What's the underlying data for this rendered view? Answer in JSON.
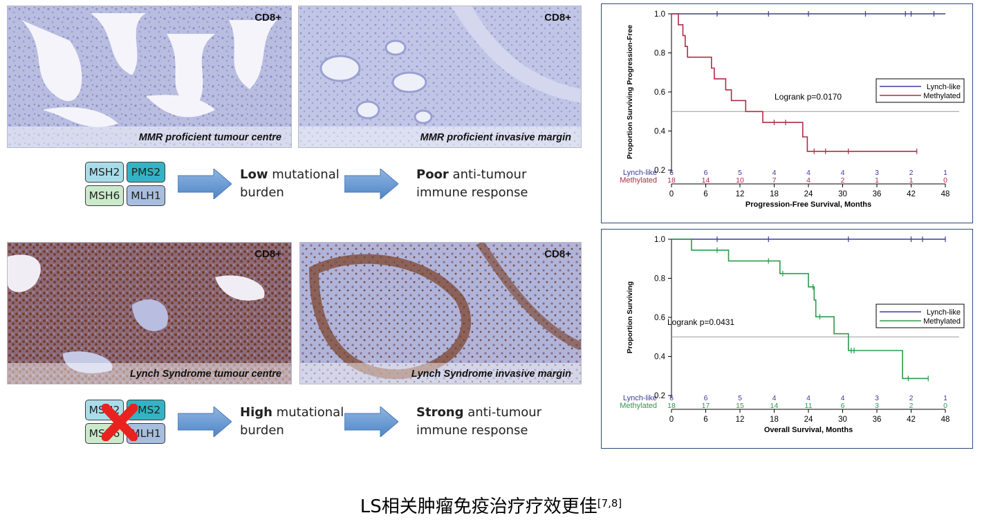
{
  "panels": {
    "p1": {
      "marker": "CD8+",
      "caption": "MMR proficient tumour centre"
    },
    "p2": {
      "marker": "CD8+",
      "caption": "MMR proficient invasive margin"
    },
    "p3": {
      "marker": "CD8+",
      "caption": "Lynch Syndrome tumour centre"
    },
    "p4": {
      "marker": "CD8+",
      "caption": "Lynch Syndrome invasive margin"
    }
  },
  "genes": {
    "msh2": "MSH2",
    "pms2": "PMS2",
    "msh6": "MSH6",
    "mlh1": "MLH1"
  },
  "row1": {
    "burden_bold": "Low",
    "burden_rest": " mutational",
    "burden_line2": "burden",
    "response_bold": "Poor",
    "response_rest": " anti-tumour",
    "response_line2": "immune response"
  },
  "row2": {
    "burden_bold": "High",
    "burden_rest": " mutational",
    "burden_line2": "burden",
    "response_bold": "Strong",
    "response_rest": " anti-tumour",
    "response_line2": "immune response"
  },
  "colors": {
    "lynch": "#3a3a9a",
    "methylated_pfs": "#b02a45",
    "methylated_os": "#2a9a4a",
    "mutation_cross": "#e8231f"
  },
  "footer": {
    "title": "LS相关肿瘤免疫治疗疗效更佳",
    "ref": "[7,8]"
  },
  "chart_data": [
    {
      "type": "line",
      "xlabel": "Progression-Free Survival, Months",
      "ylabel": "Proportion Surviving Progression-Free",
      "annotation": "Logrank p=0.0170",
      "xlim": [
        0,
        48
      ],
      "ylim": [
        0.2,
        1.0
      ],
      "xticks": [
        "0",
        "6",
        "12",
        "18",
        "24",
        "30",
        "36",
        "42",
        "48"
      ],
      "yticks": [
        "0.2",
        "0.4",
        "0.6",
        "0.8",
        "1.0"
      ],
      "reference_line": 0.5,
      "legend": "right",
      "series": [
        {
          "name": "Lynch-like",
          "steps": [
            [
              0,
              1.0
            ],
            [
              48,
              1.0
            ]
          ],
          "censor": [
            [
              8,
              1.0
            ],
            [
              17,
              1.0
            ],
            [
              24,
              1.0
            ],
            [
              34,
              1.0
            ],
            [
              41,
              1.0
            ],
            [
              42,
              1.0
            ],
            [
              46,
              1.0
            ]
          ],
          "at_risk": [
            "6",
            "6",
            "5",
            "4",
            "4",
            "4",
            "3",
            "2",
            "1"
          ]
        },
        {
          "name": "Methylated",
          "steps": [
            [
              0,
              1.0
            ],
            [
              1.2,
              1.0
            ],
            [
              1.2,
              0.944
            ],
            [
              2,
              0.944
            ],
            [
              2,
              0.889
            ],
            [
              2.4,
              0.889
            ],
            [
              2.4,
              0.833
            ],
            [
              2.8,
              0.833
            ],
            [
              2.8,
              0.778
            ],
            [
              7,
              0.778
            ],
            [
              7,
              0.722
            ],
            [
              7.5,
              0.722
            ],
            [
              7.5,
              0.667
            ],
            [
              9.5,
              0.667
            ],
            [
              9.5,
              0.611
            ],
            [
              10.5,
              0.611
            ],
            [
              10.5,
              0.556
            ],
            [
              13,
              0.556
            ],
            [
              13,
              0.5
            ],
            [
              16,
              0.5
            ],
            [
              16,
              0.444
            ],
            [
              23,
              0.444
            ],
            [
              23,
              0.37
            ],
            [
              23.8,
              0.37
            ],
            [
              23.8,
              0.296
            ],
            [
              43,
              0.296
            ]
          ],
          "censor": [
            [
              18,
              0.444
            ],
            [
              20,
              0.444
            ],
            [
              25,
              0.296
            ],
            [
              27,
              0.296
            ],
            [
              31,
              0.296
            ],
            [
              43,
              0.296
            ]
          ],
          "at_risk": [
            "18",
            "14",
            "10",
            "7",
            "4",
            "2",
            "1",
            "1",
            "0"
          ]
        }
      ]
    },
    {
      "type": "line",
      "xlabel": "Overall Survival, Months",
      "ylabel": "Proportion Surviving",
      "annotation": "Logrank p=0.0431",
      "xlim": [
        0,
        48
      ],
      "ylim": [
        0.2,
        1.0
      ],
      "xticks": [
        "0",
        "6",
        "12",
        "18",
        "24",
        "30",
        "36",
        "42",
        "48"
      ],
      "yticks": [
        "0.2",
        "0.4",
        "0.6",
        "0.8",
        "1.0"
      ],
      "reference_line": 0.5,
      "legend": "right",
      "series": [
        {
          "name": "Lynch-like",
          "steps": [
            [
              0,
              1.0
            ],
            [
              48,
              1.0
            ]
          ],
          "censor": [
            [
              8,
              1.0
            ],
            [
              17,
              1.0
            ],
            [
              31,
              1.0
            ],
            [
              42,
              1.0
            ],
            [
              44,
              1.0
            ],
            [
              48,
              1.0
            ]
          ],
          "at_risk": [
            "6",
            "6",
            "5",
            "4",
            "4",
            "4",
            "3",
            "2",
            "1"
          ]
        },
        {
          "name": "Methylated",
          "steps": [
            [
              0,
              1.0
            ],
            [
              3.5,
              1.0
            ],
            [
              3.5,
              0.944
            ],
            [
              10,
              0.944
            ],
            [
              10,
              0.889
            ],
            [
              19,
              0.889
            ],
            [
              19,
              0.824
            ],
            [
              24,
              0.824
            ],
            [
              24,
              0.756
            ],
            [
              25,
              0.756
            ],
            [
              25,
              0.689
            ],
            [
              25.3,
              0.689
            ],
            [
              25.3,
              0.603
            ],
            [
              28.5,
              0.603
            ],
            [
              28.5,
              0.516
            ],
            [
              31,
              0.516
            ],
            [
              31,
              0.43
            ],
            [
              40.5,
              0.43
            ],
            [
              40.5,
              0.287
            ],
            [
              45,
              0.287
            ]
          ],
          "censor": [
            [
              8,
              0.944
            ],
            [
              17,
              0.889
            ],
            [
              19.5,
              0.824
            ],
            [
              24.8,
              0.756
            ],
            [
              26,
              0.603
            ],
            [
              31.5,
              0.43
            ],
            [
              32,
              0.43
            ],
            [
              41.5,
              0.287
            ],
            [
              45,
              0.287
            ]
          ],
          "at_risk": [
            "18",
            "17",
            "15",
            "14",
            "11",
            "6",
            "3",
            "2",
            "0"
          ]
        }
      ]
    }
  ]
}
